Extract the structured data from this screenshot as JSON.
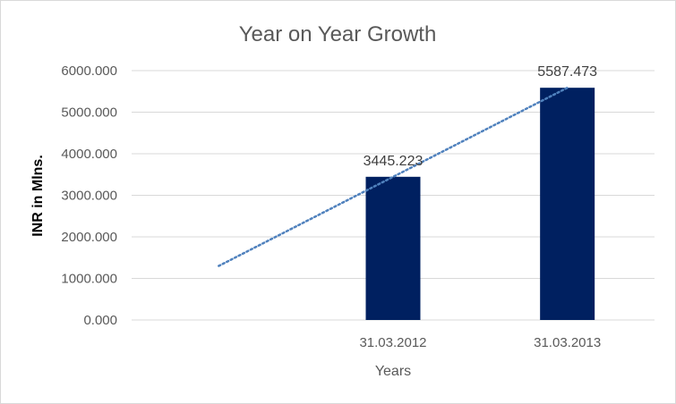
{
  "chart_data": {
    "type": "bar",
    "title": "Year on Year Growth",
    "xlabel": "Years",
    "ylabel": "INR in Mlns.",
    "categories": [
      "",
      "31.03.2012",
      "31.03.2013"
    ],
    "series": [
      {
        "values": [
          null,
          3445.223,
          5587.473
        ],
        "data_labels": [
          "",
          "3445.223",
          "5587.473"
        ]
      }
    ],
    "trendline": {
      "type": "linear",
      "style": "dotted",
      "from": 1300,
      "to": 5587.473
    },
    "y_ticks": [
      "0.000",
      "1000.000",
      "2000.000",
      "3000.000",
      "4000.000",
      "5000.000",
      "6000.000"
    ],
    "ylim": [
      0,
      6000
    ],
    "grid": true,
    "legend": "none",
    "colors": {
      "bar": "#002060",
      "trendline": "#4f81bd",
      "grid": "#d9d9d9"
    }
  }
}
